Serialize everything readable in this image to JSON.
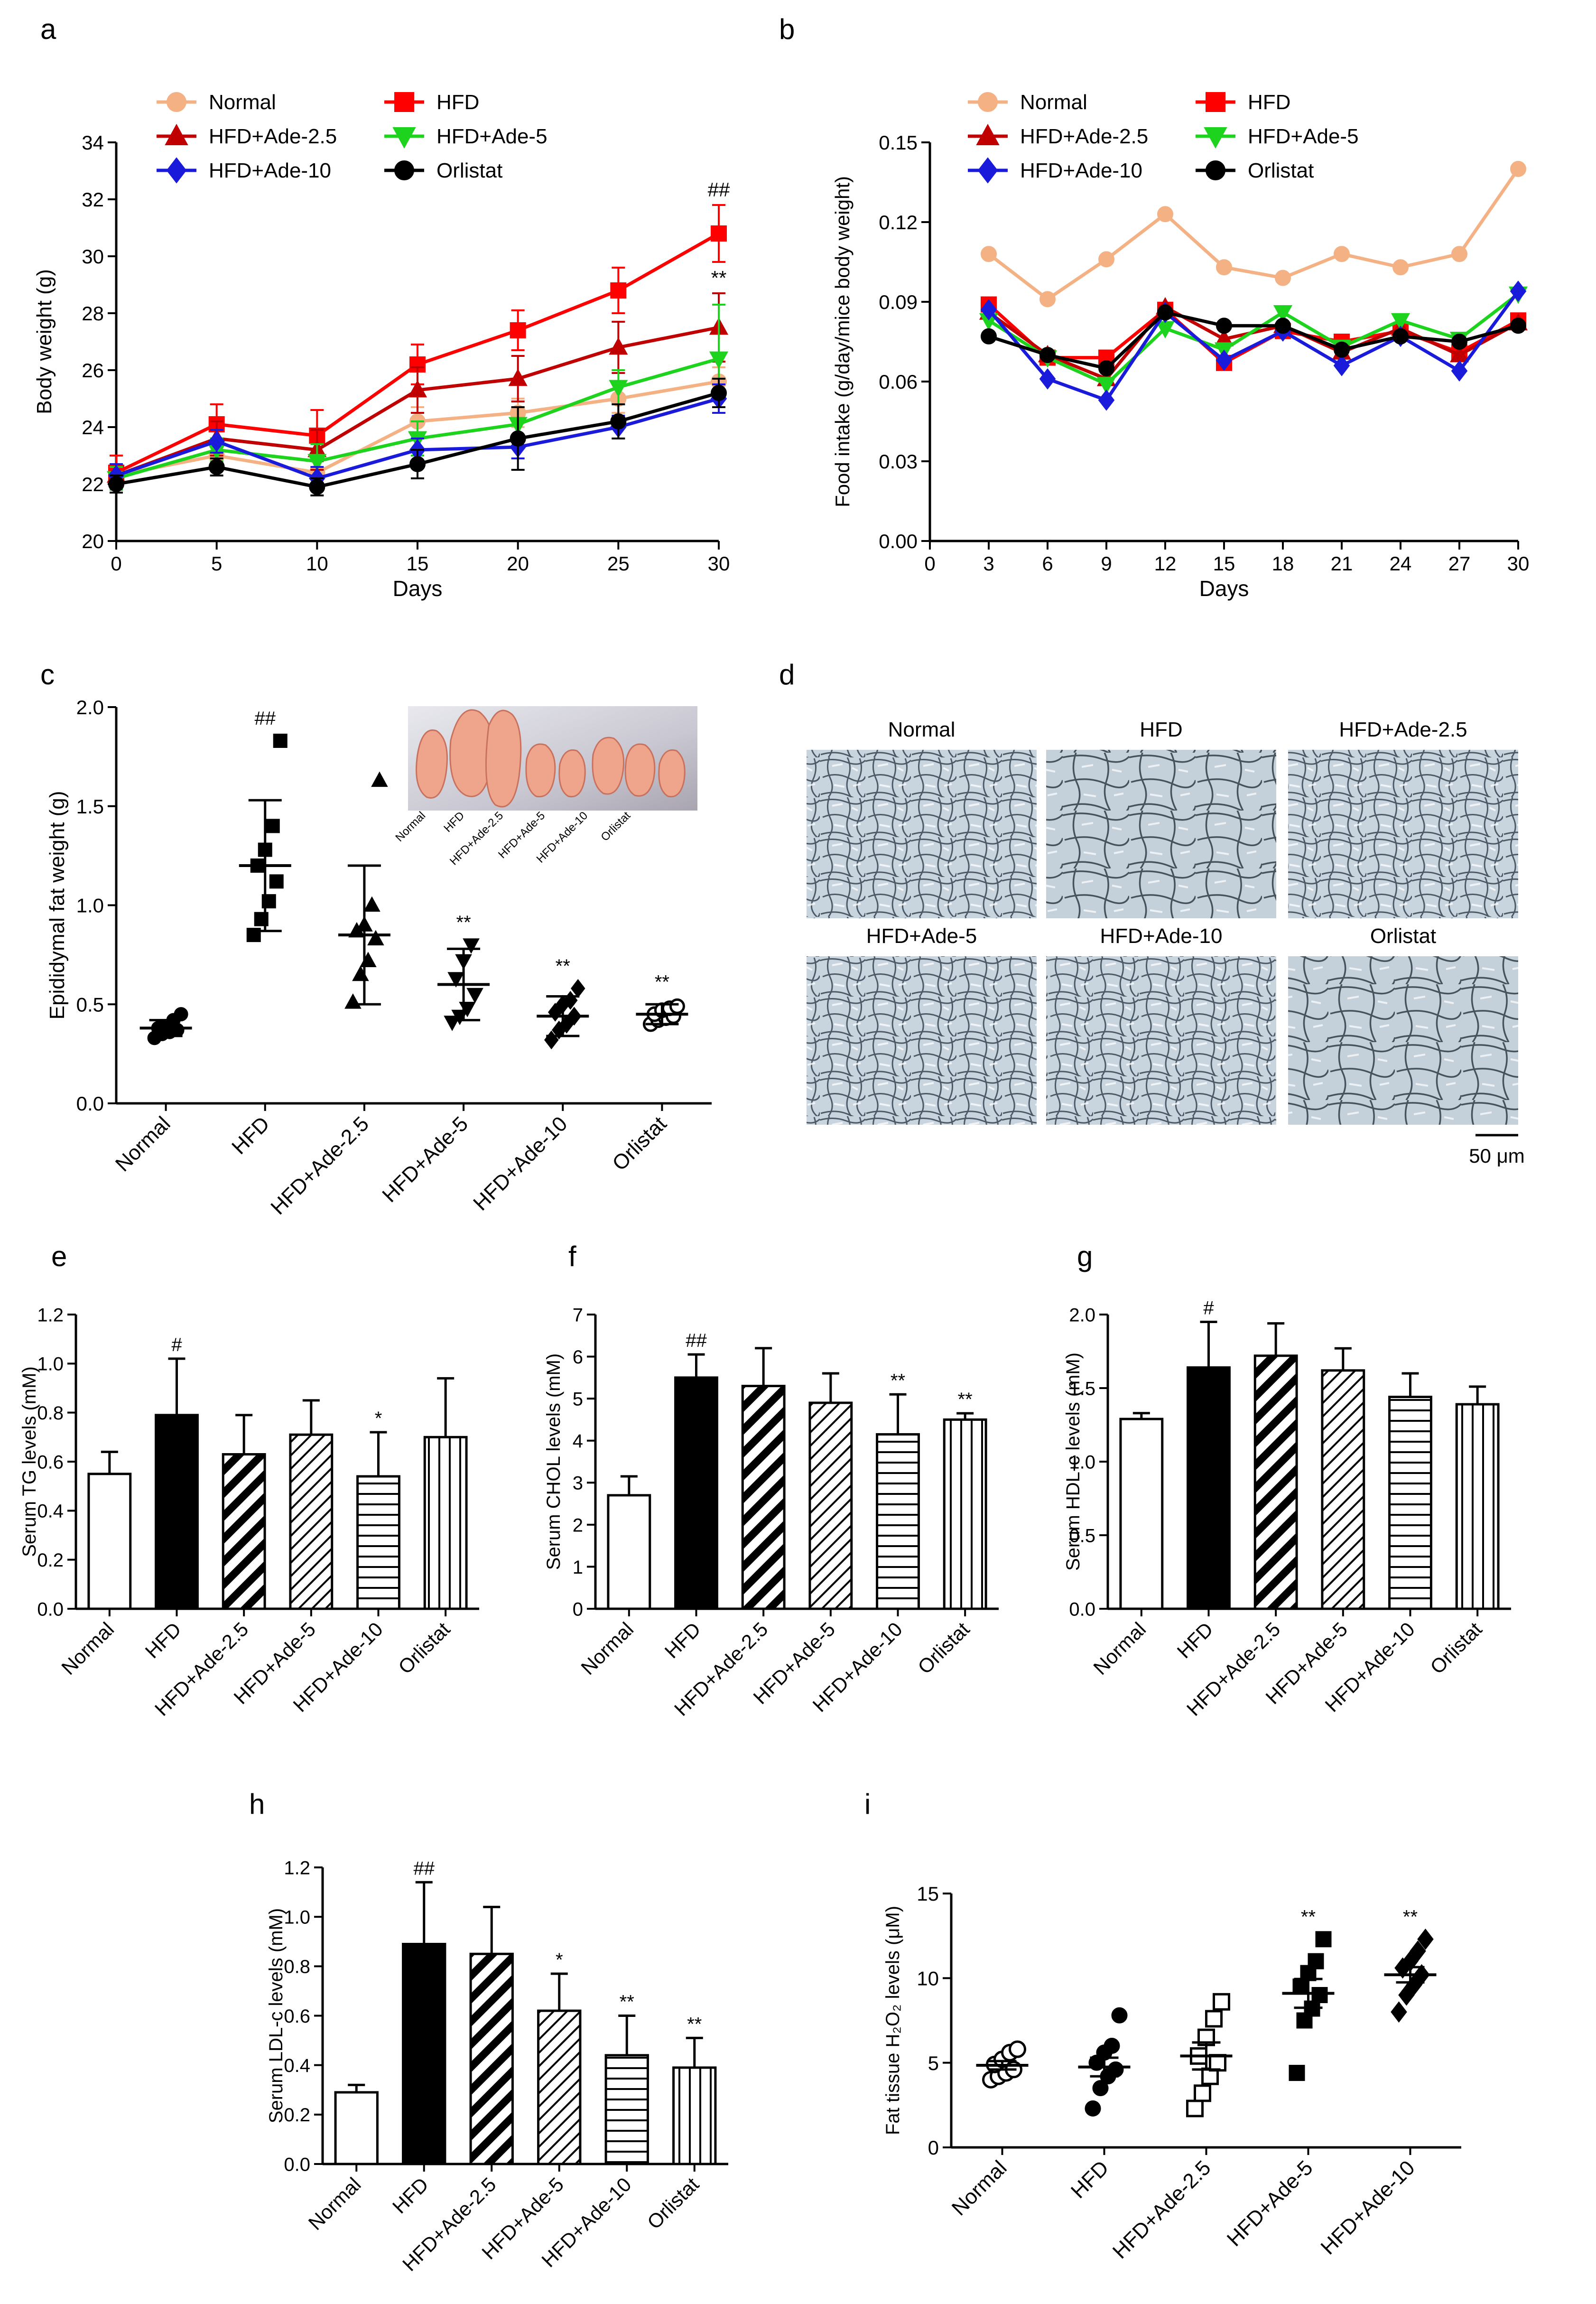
{
  "groups6": [
    "Normal",
    "HFD",
    "HFD+Ade-2.5",
    "HFD+Ade-5",
    "HFD+Ade-10",
    "Orlistat"
  ],
  "scalebar_label": "50 μm",
  "chart_data": [
    {
      "panel": "a",
      "type": "line",
      "xlabel": "Days",
      "ylabel": "Body weight (g)",
      "xlim": [
        0,
        30
      ],
      "ylim": [
        20,
        34
      ],
      "xticks": [
        0,
        5,
        10,
        15,
        20,
        25,
        30
      ],
      "yticks": [
        20,
        22,
        24,
        26,
        28,
        30,
        32,
        34
      ],
      "x": [
        0,
        5,
        10,
        15,
        20,
        25,
        30
      ],
      "legend": "top-left (two columns)",
      "series": [
        {
          "name": "Normal",
          "color": "#f4b183",
          "marker": "circle",
          "values": [
            22.3,
            23.0,
            22.4,
            24.2,
            24.5,
            25.0,
            25.6
          ],
          "err": [
            0.3,
            0.4,
            0.4,
            0.5,
            0.5,
            0.5,
            0.5
          ]
        },
        {
          "name": "HFD",
          "color": "#ff0000",
          "marker": "square",
          "values": [
            22.4,
            24.1,
            23.7,
            26.2,
            27.4,
            28.8,
            30.8
          ],
          "err": [
            0.6,
            0.7,
            0.9,
            0.7,
            0.7,
            0.8,
            1.0
          ]
        },
        {
          "name": "HFD+Ade-2.5",
          "color": "#c00000",
          "marker": "triangle-up",
          "values": [
            22.3,
            23.6,
            23.2,
            25.3,
            25.7,
            26.8,
            27.5
          ],
          "err": [
            0.4,
            0.6,
            0.7,
            0.8,
            0.8,
            0.9,
            1.2
          ]
        },
        {
          "name": "HFD+Ade-5",
          "color": "#1ed31e",
          "marker": "triangle-down",
          "values": [
            22.2,
            23.2,
            22.8,
            23.6,
            24.1,
            25.4,
            26.4
          ],
          "err": [
            0.4,
            0.4,
            0.6,
            0.6,
            0.6,
            0.6,
            1.9
          ]
        },
        {
          "name": "HFD+Ade-10",
          "color": "#1a1adb",
          "marker": "diamond",
          "values": [
            22.3,
            23.5,
            22.2,
            23.2,
            23.3,
            24.0,
            25.0
          ],
          "err": [
            0.4,
            0.4,
            0.4,
            0.4,
            0.4,
            0.4,
            0.5
          ]
        },
        {
          "name": "Orlistat",
          "color": "#000000",
          "marker": "circle",
          "values": [
            22.0,
            22.6,
            21.9,
            22.7,
            23.6,
            24.2,
            25.2
          ],
          "err": [
            0.3,
            0.3,
            0.3,
            0.5,
            1.1,
            0.6,
            0.5
          ]
        }
      ],
      "annotations": [
        {
          "x": 30,
          "y": 32.1,
          "text": "##"
        },
        {
          "x": 30,
          "y": 29.0,
          "text": "**"
        }
      ]
    },
    {
      "panel": "b",
      "type": "line",
      "xlabel": "Days",
      "ylabel": "Food intake (g/day/mice body weight)",
      "xlim": [
        0,
        30
      ],
      "ylim": [
        0,
        0.15
      ],
      "xticks": [
        0,
        3,
        6,
        9,
        12,
        15,
        18,
        21,
        24,
        27,
        30
      ],
      "yticks": [
        0,
        0.03,
        0.06,
        0.09,
        0.12,
        0.15
      ],
      "ytick_labels": [
        "0.00",
        "0.03",
        "0.06",
        "0.09",
        "0.12",
        "0.15"
      ],
      "x": [
        3,
        6,
        9,
        12,
        15,
        18,
        21,
        24,
        27,
        30
      ],
      "legend": "top (two columns)",
      "series": [
        {
          "name": "Normal",
          "color": "#f4b183",
          "marker": "circle",
          "values": [
            0.108,
            0.091,
            0.106,
            0.123,
            0.103,
            0.099,
            0.108,
            0.103,
            0.108,
            0.14
          ]
        },
        {
          "name": "HFD",
          "color": "#ff0000",
          "marker": "square",
          "values": [
            0.089,
            0.069,
            0.069,
            0.087,
            0.067,
            0.079,
            0.075,
            0.079,
            0.071,
            0.083
          ]
        },
        {
          "name": "HFD+Ade-2.5",
          "color": "#c00000",
          "marker": "triangle-up",
          "values": [
            0.086,
            0.07,
            0.061,
            0.088,
            0.076,
            0.081,
            0.071,
            0.08,
            0.07,
            0.082
          ]
        },
        {
          "name": "HFD+Ade-5",
          "color": "#1ed31e",
          "marker": "triangle-down",
          "values": [
            0.083,
            0.069,
            0.059,
            0.08,
            0.072,
            0.086,
            0.073,
            0.083,
            0.076,
            0.093
          ]
        },
        {
          "name": "HFD+Ade-10",
          "color": "#1a1adb",
          "marker": "diamond",
          "values": [
            0.087,
            0.061,
            0.053,
            0.086,
            0.068,
            0.079,
            0.066,
            0.077,
            0.064,
            0.094
          ]
        },
        {
          "name": "Orlistat",
          "color": "#000000",
          "marker": "circle",
          "values": [
            0.077,
            0.07,
            0.065,
            0.086,
            0.081,
            0.081,
            0.072,
            0.077,
            0.075,
            0.081
          ]
        }
      ]
    },
    {
      "panel": "c",
      "type": "scatter",
      "ylabel": "Epididymal fat weight (g)",
      "categories": [
        "Normal",
        "HFD",
        "HFD+Ade-2.5",
        "HFD+Ade-5",
        "HFD+Ade-10",
        "Orlistat"
      ],
      "ylim": [
        0,
        2.0
      ],
      "yticks": [
        0,
        0.5,
        1.0,
        1.5,
        2.0
      ],
      "ytick_labels": [
        "0.0",
        "0.5",
        "1.0",
        "1.5",
        "2.0"
      ],
      "markers": [
        "circle-filled",
        "square-filled",
        "triangle-up-filled",
        "triangle-down-filled",
        "diamond-filled",
        "circle-open"
      ],
      "points": [
        [
          0.33,
          0.35,
          0.36,
          0.37,
          0.38,
          0.39,
          0.42,
          0.45
        ],
        [
          0.85,
          0.93,
          1.02,
          1.12,
          1.2,
          1.28,
          1.4,
          1.83
        ],
        [
          0.51,
          0.65,
          0.72,
          0.83,
          0.87,
          0.9,
          1.0,
          1.63
        ],
        [
          0.41,
          0.44,
          0.48,
          0.55,
          0.63,
          0.72,
          0.8
        ],
        [
          0.32,
          0.37,
          0.4,
          0.44,
          0.46,
          0.5,
          0.52,
          0.58
        ],
        [
          0.4,
          0.42,
          0.43,
          0.44,
          0.45,
          0.47,
          0.48,
          0.49
        ]
      ],
      "mean": [
        0.38,
        1.2,
        0.85,
        0.6,
        0.44,
        0.45
      ],
      "sd": [
        0.04,
        0.33,
        0.35,
        0.18,
        0.1,
        0.05
      ],
      "annotations": [
        "",
        "##",
        "",
        "**",
        "**",
        "**"
      ],
      "inset_photo_labels": [
        "Normal",
        "HFD",
        "HFD+Ade-2.5",
        "HFD+Ade-5",
        "HFD+Ade-10",
        "Orlistat"
      ]
    },
    {
      "panel": "d",
      "type": "image-grid",
      "titles": [
        "Normal",
        "HFD",
        "HFD+Ade-2.5",
        "HFD+Ade-5",
        "HFD+Ade-10",
        "Orlistat"
      ]
    },
    {
      "panel": "e",
      "type": "bar",
      "ylabel": "Serum TG levels (mM)",
      "categories": [
        "Normal",
        "HFD",
        "HFD+Ade-2.5",
        "HFD+Ade-5",
        "HFD+Ade-10",
        "Orlistat"
      ],
      "values": [
        0.55,
        0.79,
        0.63,
        0.71,
        0.54,
        0.7
      ],
      "err": [
        0.09,
        0.23,
        0.16,
        0.14,
        0.18,
        0.24
      ],
      "ylim": [
        0,
        1.2
      ],
      "yticks": [
        0,
        0.2,
        0.4,
        0.6,
        0.8,
        1.0,
        1.2
      ],
      "ytick_labels": [
        "0.0",
        "0.2",
        "0.4",
        "0.6",
        "0.8",
        "1.0",
        "1.2"
      ],
      "annotations": [
        "",
        "#",
        "",
        "",
        "*",
        ""
      ]
    },
    {
      "panel": "f",
      "type": "bar",
      "ylabel": "Serum CHOL levels (mM)",
      "categories": [
        "Normal",
        "HFD",
        "HFD+Ade-2.5",
        "HFD+Ade-5",
        "HFD+Ade-10",
        "Orlistat"
      ],
      "values": [
        2.7,
        5.5,
        5.3,
        4.9,
        4.15,
        4.5
      ],
      "err": [
        0.45,
        0.55,
        0.9,
        0.7,
        0.95,
        0.15
      ],
      "ylim": [
        0,
        7
      ],
      "yticks": [
        0,
        1,
        2,
        3,
        4,
        5,
        6,
        7
      ],
      "ytick_labels": [
        "0",
        "1",
        "2",
        "3",
        "4",
        "5",
        "6",
        "7"
      ],
      "annotations": [
        "",
        "##",
        "",
        "",
        "**",
        "**"
      ]
    },
    {
      "panel": "g",
      "type": "bar",
      "ylabel": "Serum HDL-c levels (mM)",
      "categories": [
        "Normal",
        "HFD",
        "HFD+Ade-2.5",
        "HFD+Ade-5",
        "HFD+Ade-10",
        "Orlistat"
      ],
      "values": [
        1.29,
        1.64,
        1.72,
        1.62,
        1.44,
        1.39
      ],
      "err": [
        0.04,
        0.31,
        0.22,
        0.15,
        0.16,
        0.12
      ],
      "ylim": [
        0,
        2.0
      ],
      "yticks": [
        0,
        0.5,
        1.0,
        1.5,
        2.0
      ],
      "ytick_labels": [
        "0.0",
        "0.5",
        "1.0",
        "1.5",
        "2.0"
      ],
      "annotations": [
        "",
        "#",
        "",
        "",
        "",
        ""
      ]
    },
    {
      "panel": "h",
      "type": "bar",
      "ylabel": "Serum LDL-c levels (mM)",
      "categories": [
        "Normal",
        "HFD",
        "HFD+Ade-2.5",
        "HFD+Ade-5",
        "HFD+Ade-10",
        "Orlistat"
      ],
      "values": [
        0.29,
        0.89,
        0.85,
        0.62,
        0.44,
        0.39
      ],
      "err": [
        0.03,
        0.25,
        0.19,
        0.15,
        0.16,
        0.12
      ],
      "ylim": [
        0,
        1.2
      ],
      "yticks": [
        0,
        0.2,
        0.4,
        0.6,
        0.8,
        1.0,
        1.2
      ],
      "ytick_labels": [
        "0.0",
        "0.2",
        "0.4",
        "0.6",
        "0.8",
        "1.0",
        "1.2"
      ],
      "annotations": [
        "",
        "##",
        "",
        "*",
        "**",
        "**"
      ]
    },
    {
      "panel": "i",
      "type": "scatter",
      "ylabel": "Fat tissue H₂O₂ levels (μM)",
      "categories": [
        "Normal",
        "HFD",
        "HFD+Ade-2.5",
        "HFD+Ade-5",
        "HFD+Ade-10"
      ],
      "ylim": [
        0,
        15
      ],
      "yticks": [
        0,
        5,
        10,
        15
      ],
      "ytick_labels": [
        "0",
        "5",
        "10",
        "15"
      ],
      "markers": [
        "circle-open",
        "circle-filled",
        "square-open",
        "square-filled",
        "diamond-filled"
      ],
      "points": [
        [
          4.0,
          4.2,
          4.4,
          4.6,
          4.9,
          5.2,
          5.6,
          5.8
        ],
        [
          2.3,
          3.5,
          4.2,
          4.6,
          5.0,
          5.6,
          6.0,
          7.8
        ],
        [
          2.3,
          3.2,
          4.2,
          5.0,
          5.4,
          6.5,
          7.6,
          8.6
        ],
        [
          4.4,
          7.5,
          8.2,
          9.0,
          9.5,
          10.3,
          11.0,
          12.3
        ],
        [
          8.0,
          9.0,
          9.6,
          10.2,
          10.6,
          11.0,
          11.6,
          12.3
        ]
      ],
      "mean": [
        4.85,
        4.75,
        5.4,
        9.1,
        10.2
      ],
      "sem": [
        0.25,
        0.55,
        0.8,
        0.85,
        0.45
      ],
      "annotations": [
        "",
        "",
        "",
        "**",
        "**"
      ]
    }
  ]
}
